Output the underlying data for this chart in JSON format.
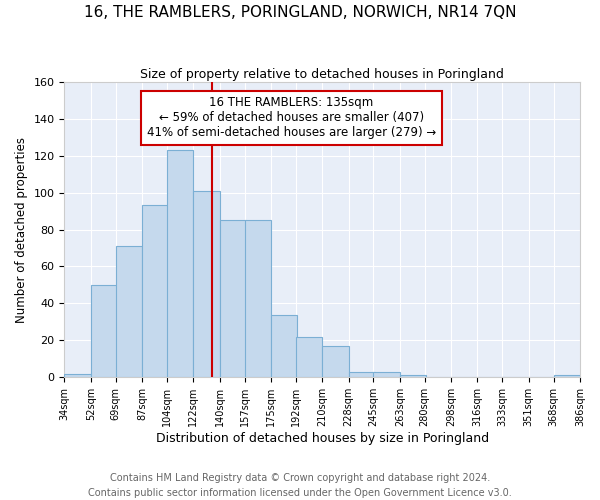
{
  "title": "16, THE RAMBLERS, PORINGLAND, NORWICH, NR14 7QN",
  "subtitle": "Size of property relative to detached houses in Poringland",
  "xlabel": "Distribution of detached houses by size in Poringland",
  "ylabel": "Number of detached properties",
  "footnote1": "Contains HM Land Registry data © Crown copyright and database right 2024.",
  "footnote2": "Contains public sector information licensed under the Open Government Licence v3.0.",
  "annotation_line1": "16 THE RAMBLERS: 135sqm",
  "annotation_line2": "← 59% of detached houses are smaller (407)",
  "annotation_line3": "41% of semi-detached houses are larger (279) →",
  "bar_left_edges": [
    34,
    52,
    69,
    87,
    104,
    122,
    140,
    157,
    175,
    192,
    210,
    228,
    245,
    263,
    280,
    298,
    316,
    333,
    351,
    368
  ],
  "bar_labels": [
    "34sqm",
    "52sqm",
    "69sqm",
    "87sqm",
    "104sqm",
    "122sqm",
    "140sqm",
    "157sqm",
    "175sqm",
    "192sqm",
    "210sqm",
    "228sqm",
    "245sqm",
    "263sqm",
    "280sqm",
    "298sqm",
    "316sqm",
    "333sqm",
    "351sqm",
    "368sqm",
    "386sqm"
  ],
  "bar_heights": [
    2,
    50,
    71,
    93,
    123,
    101,
    85,
    85,
    34,
    22,
    17,
    3,
    3,
    1,
    0,
    0,
    0,
    0,
    0,
    1
  ],
  "bar_color": "#c5d9ed",
  "bar_edge_color": "#7bafd4",
  "vline_x": 135,
  "vline_color": "#cc0000",
  "annotation_box_edgecolor": "#cc0000",
  "ylim": [
    0,
    160
  ],
  "yticks": [
    0,
    20,
    40,
    60,
    80,
    100,
    120,
    140,
    160
  ],
  "xlim_left": 34,
  "xlim_right": 386,
  "background_color": "#e8eef8",
  "grid_color": "#ffffff",
  "title_fontsize": 11,
  "subtitle_fontsize": 9,
  "ylabel_fontsize": 8.5,
  "xlabel_fontsize": 9,
  "footnote_fontsize": 7,
  "tick_fontsize": 8,
  "annotation_fontsize": 8.5
}
